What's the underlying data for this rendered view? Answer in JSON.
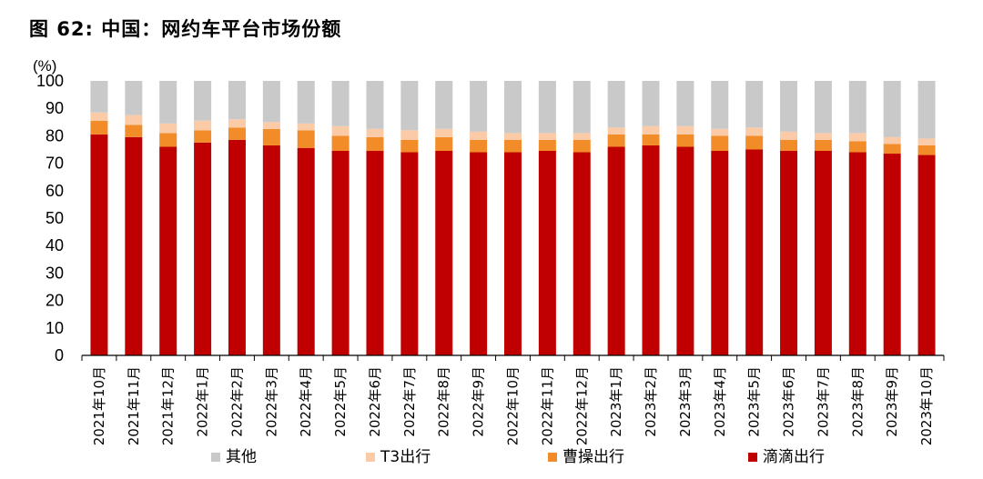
{
  "chart_data": {
    "type": "bar",
    "stacked": true,
    "title": "图 62: 中国：网约车平台市场份额",
    "y_unit": "(%)",
    "ylim": [
      0,
      100
    ],
    "yticks": [
      0,
      10,
      20,
      30,
      40,
      50,
      60,
      70,
      80,
      90,
      100
    ],
    "grid": false,
    "legend_position": "bottom",
    "categories": [
      "2021年10月",
      "2021年11月",
      "2021年12月",
      "2022年1月",
      "2022年2月",
      "2022年3月",
      "2022年4月",
      "2022年5月",
      "2022年6月",
      "2022年7月",
      "2022年8月",
      "2022年9月",
      "2022年10月",
      "2022年11月",
      "2022年12月",
      "2023年1月",
      "2023年2月",
      "2023年3月",
      "2023年4月",
      "2023年5月",
      "2023年6月",
      "2023年7月",
      "2023年8月",
      "2023年9月",
      "2023年10月"
    ],
    "series": [
      {
        "name": "滴滴出行",
        "color": "#c00000",
        "values": [
          80.5,
          79.5,
          76,
          77.5,
          78.5,
          76.5,
          75.5,
          74.5,
          74.5,
          74,
          74.5,
          74,
          74,
          74.5,
          74,
          76,
          76.5,
          76,
          74.5,
          75,
          74.5,
          74.5,
          74,
          73.5,
          73
        ]
      },
      {
        "name": "曹操出行",
        "color": "#f28c28",
        "values": [
          5,
          4.5,
          5,
          4.5,
          4.5,
          6,
          6.5,
          5.5,
          5,
          4.5,
          5,
          4.5,
          4.5,
          4,
          4.5,
          4.5,
          4,
          4.5,
          5.5,
          5,
          4,
          4,
          4,
          3.5,
          3.5
        ]
      },
      {
        "name": "T3出行",
        "color": "#fbcaa7",
        "values": [
          3,
          3.5,
          3.5,
          3.5,
          3,
          2.5,
          2.5,
          3.5,
          3,
          3.5,
          3,
          3,
          2.5,
          2.5,
          2.5,
          2.5,
          3,
          3,
          2.5,
          3,
          3,
          2.5,
          3,
          2.5,
          2.5
        ]
      },
      {
        "name": "其他",
        "color": "#c9c9c9",
        "values": [
          11.5,
          12.5,
          15.5,
          14.5,
          14,
          15,
          15.5,
          16.5,
          17.5,
          18,
          17.5,
          18.5,
          19,
          19,
          19,
          17,
          16.5,
          16.5,
          17.5,
          17,
          18.5,
          19,
          19,
          20.5,
          21
        ]
      }
    ],
    "legend_order": [
      "其他",
      "T3出行",
      "曹操出行",
      "滴滴出行"
    ]
  }
}
